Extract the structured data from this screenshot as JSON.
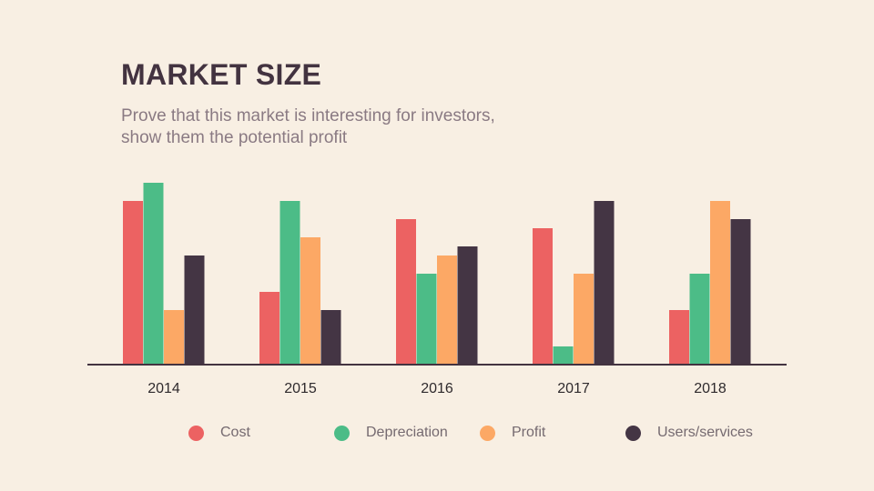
{
  "title": "MARKET SIZE",
  "subtitle": "Prove that this market is interesting for investors, show them the potential profit",
  "chart_data": {
    "type": "bar",
    "categories": [
      "2014",
      "2015",
      "2016",
      "2017",
      "2018"
    ],
    "series": [
      {
        "name": "Cost",
        "color": "#ec6262",
        "values": [
          9,
          4,
          8,
          7.5,
          3
        ]
      },
      {
        "name": "Depreciation",
        "color": "#4cbc87",
        "values": [
          10,
          9,
          5,
          1,
          5
        ]
      },
      {
        "name": "Profit",
        "color": "#fca865",
        "values": [
          3,
          7,
          6,
          5,
          9
        ]
      },
      {
        "name": "Users/services",
        "color": "#443544",
        "values": [
          6,
          3,
          6.5,
          9,
          8
        ]
      }
    ],
    "ylim": [
      0,
      10
    ],
    "xlabel": "",
    "ylabel": "",
    "grid": false,
    "legend_position": "bottom"
  }
}
